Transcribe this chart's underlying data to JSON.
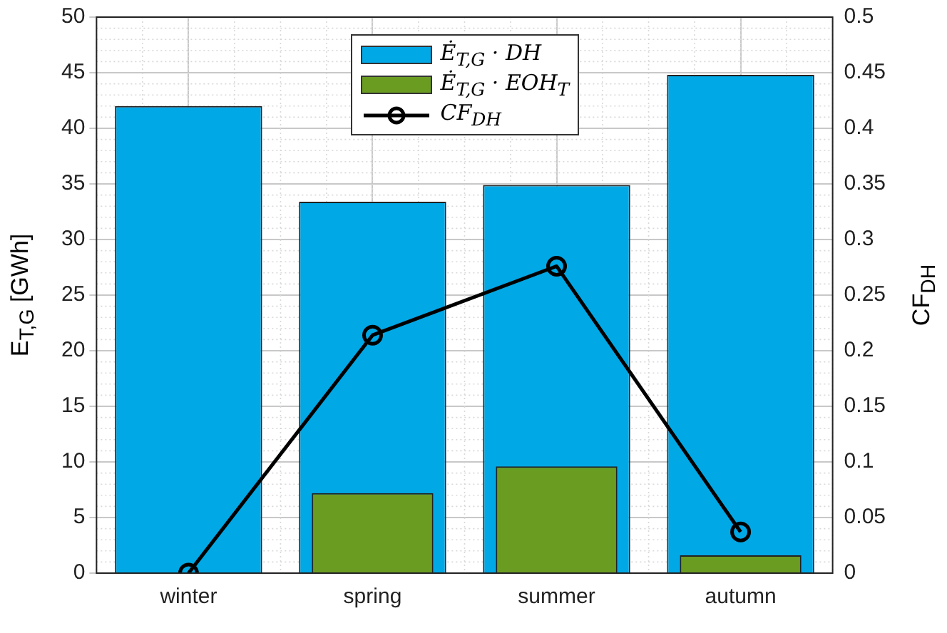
{
  "chart_data": {
    "type": "bar",
    "categories": [
      "winter",
      "spring",
      "summer",
      "autumn"
    ],
    "series": [
      {
        "name": "Ė$_{T,G}$ · DH",
        "color": "#00a8e6",
        "values": [
          42,
          33.4,
          34.9,
          44.8
        ]
      },
      {
        "name": "Ė$_{T,G}$ · EOH$_{T}$",
        "color": "#6b9c22",
        "values": [
          0,
          7.2,
          9.6,
          1.6
        ]
      },
      {
        "name": "CF$_{DH}$",
        "type": "line",
        "axis": "y2",
        "color": "#000000",
        "values": [
          0,
          0.214,
          0.276,
          0.037
        ]
      }
    ],
    "ylabel": "E$_{T,G}$ [GWh]",
    "y2label": "CF$_{DH}$",
    "ylim": [
      0,
      50
    ],
    "yticks": [
      0,
      5,
      10,
      15,
      20,
      25,
      30,
      35,
      40,
      45,
      50
    ],
    "y2lim": [
      0,
      0.5
    ],
    "y2ticks": [
      0,
      0.05,
      0.1,
      0.15,
      0.2,
      0.25,
      0.3,
      0.35,
      0.4,
      0.45,
      0.5
    ],
    "grid": true,
    "legend": "top",
    "marker": "circle",
    "line_style": "solid"
  }
}
